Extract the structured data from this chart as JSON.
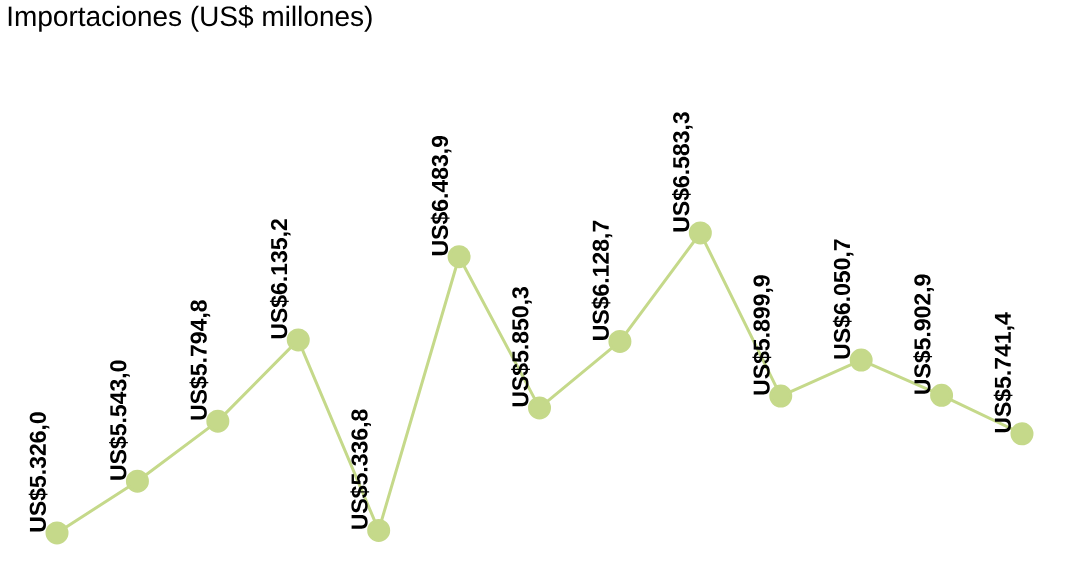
{
  "chart_data": {
    "type": "line",
    "title": "Importaciones (US$ millones)",
    "categories": [
      null,
      null,
      null,
      null,
      null,
      null,
      null,
      null,
      null,
      null,
      null,
      null,
      null
    ],
    "values": [
      5326.0,
      5543.0,
      5794.8,
      6135.2,
      5336.8,
      6483.9,
      5850.3,
      6128.7,
      6583.3,
      5899.9,
      6050.7,
      5902.9,
      5741.4
    ],
    "value_labels": [
      "US$5.326,0",
      "US$5.543,0",
      "US$5.794,8",
      "US$6.135,2",
      "US$5.336,8",
      "US$6.483,9",
      "US$5.850,3",
      "US$6.128,7",
      "US$6.583,3",
      "US$5.899,9",
      "US$6.050,7",
      "US$5.902,9",
      "US$5.741,4"
    ],
    "color": "#c5d98a",
    "marker": "circle"
  }
}
